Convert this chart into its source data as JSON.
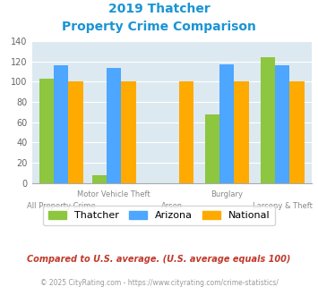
{
  "title_line1": "2019 Thatcher",
  "title_line2": "Property Crime Comparison",
  "categories": [
    "All Property Crime",
    "Motor Vehicle Theft",
    "Arson",
    "Burglary",
    "Larceny & Theft"
  ],
  "thatcher": [
    103,
    8,
    0,
    68,
    124
  ],
  "arizona": [
    116,
    114,
    0,
    117,
    116
  ],
  "national": [
    100,
    100,
    100,
    100,
    100
  ],
  "color_thatcher": "#8dc63f",
  "color_arizona": "#4da6ff",
  "color_national": "#ffaa00",
  "color_title": "#1a94d4",
  "color_footnote1": "#c0392b",
  "color_footnote2": "#999999",
  "color_url": "#4da6ff",
  "ylim": [
    0,
    140
  ],
  "yticks": [
    0,
    20,
    40,
    60,
    80,
    100,
    120,
    140
  ],
  "bg_color": "#dce9f0",
  "footnote1": "Compared to U.S. average. (U.S. average equals 100)",
  "footnote2_prefix": "© 2025 CityRating.com - ",
  "footnote2_url": "https://www.cityrating.com/crime-statistics/",
  "legend_labels": [
    "Thatcher",
    "Arizona",
    "National"
  ],
  "top_labels": {
    "1": "Motor Vehicle Theft",
    "3": "Burglary"
  },
  "bottom_labels": {
    "0": "All Property Crime",
    "2": "Arson",
    "4": "Larceny & Theft"
  },
  "positions": [
    0.38,
    1.18,
    2.05,
    2.88,
    3.72
  ],
  "bar_width": 0.22
}
